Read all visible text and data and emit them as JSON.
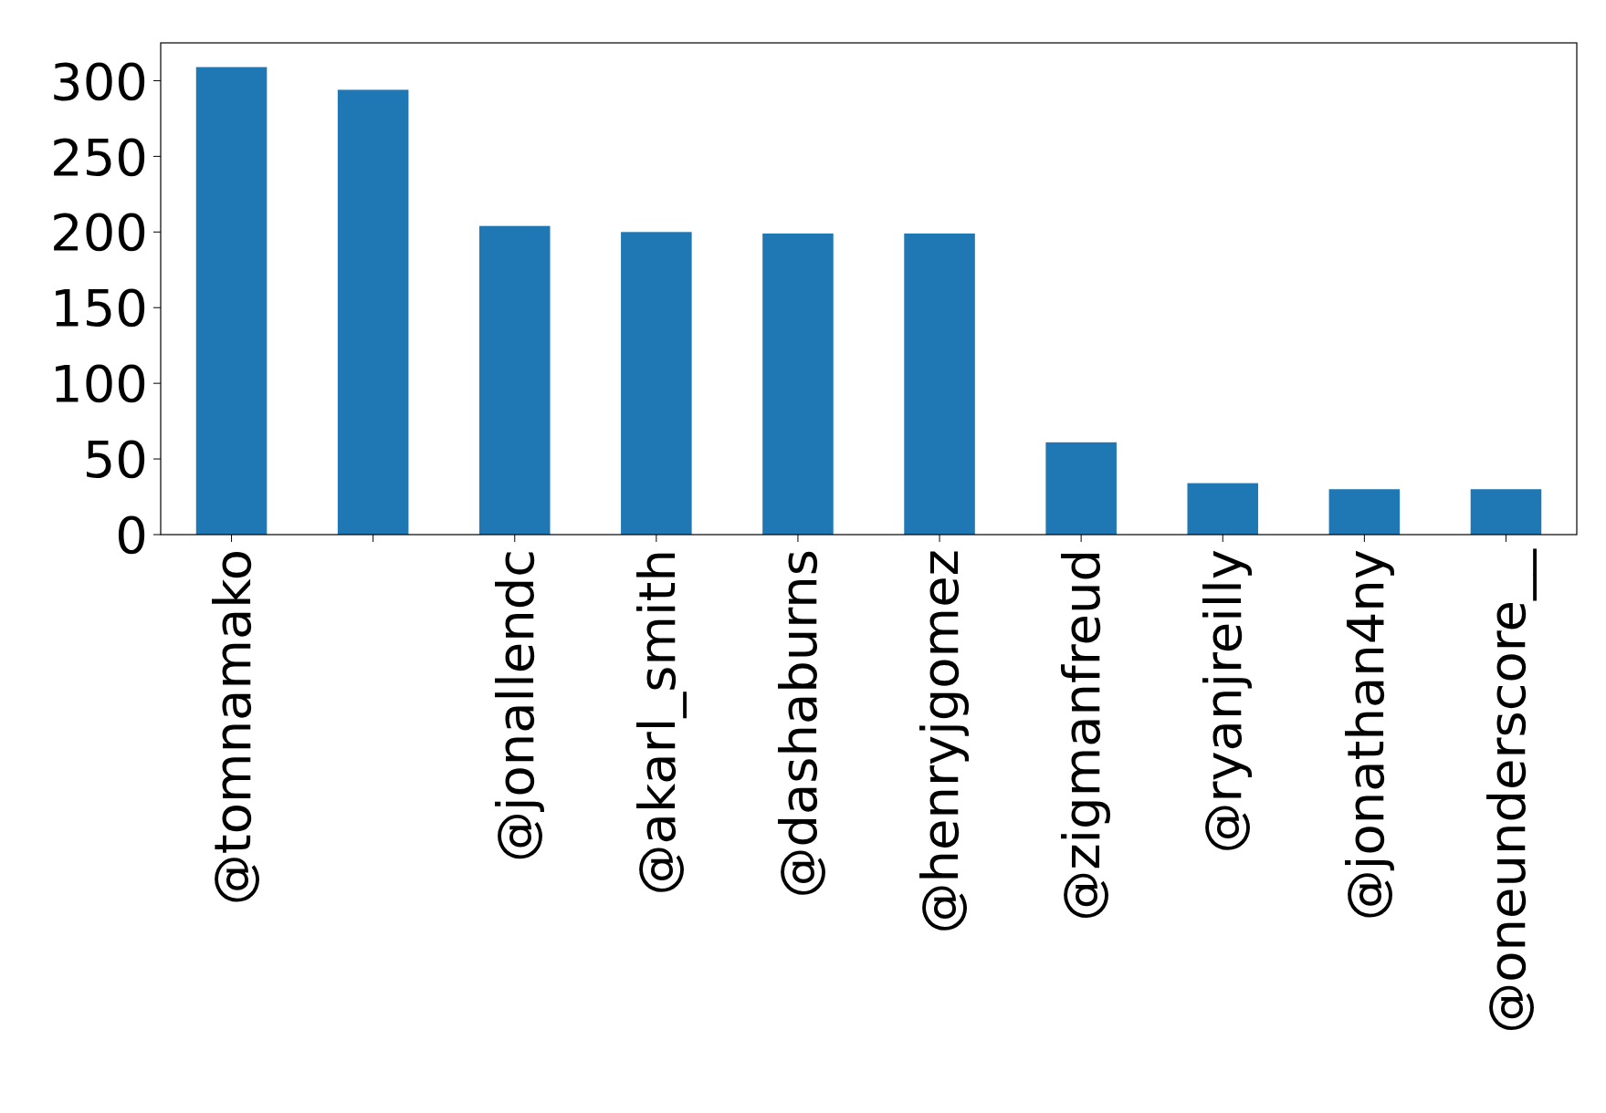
{
  "chart_data": {
    "type": "bar",
    "categories": [
      "@tomnamako",
      null,
      "@jonallendc",
      "@akarl_smith",
      "@dashaburns",
      "@henryjgomez",
      "@zigmanfreud",
      "@ryanjreilly",
      "@jonathan4ny",
      "@oneunderscore__"
    ],
    "values": [
      309,
      294,
      204,
      200,
      199,
      199,
      61,
      34,
      30,
      30
    ],
    "color": "#1f77b4",
    "ylim": [
      0,
      325
    ],
    "yticks": [
      0,
      50,
      100,
      150,
      200,
      250,
      300
    ],
    "grid": false
  }
}
